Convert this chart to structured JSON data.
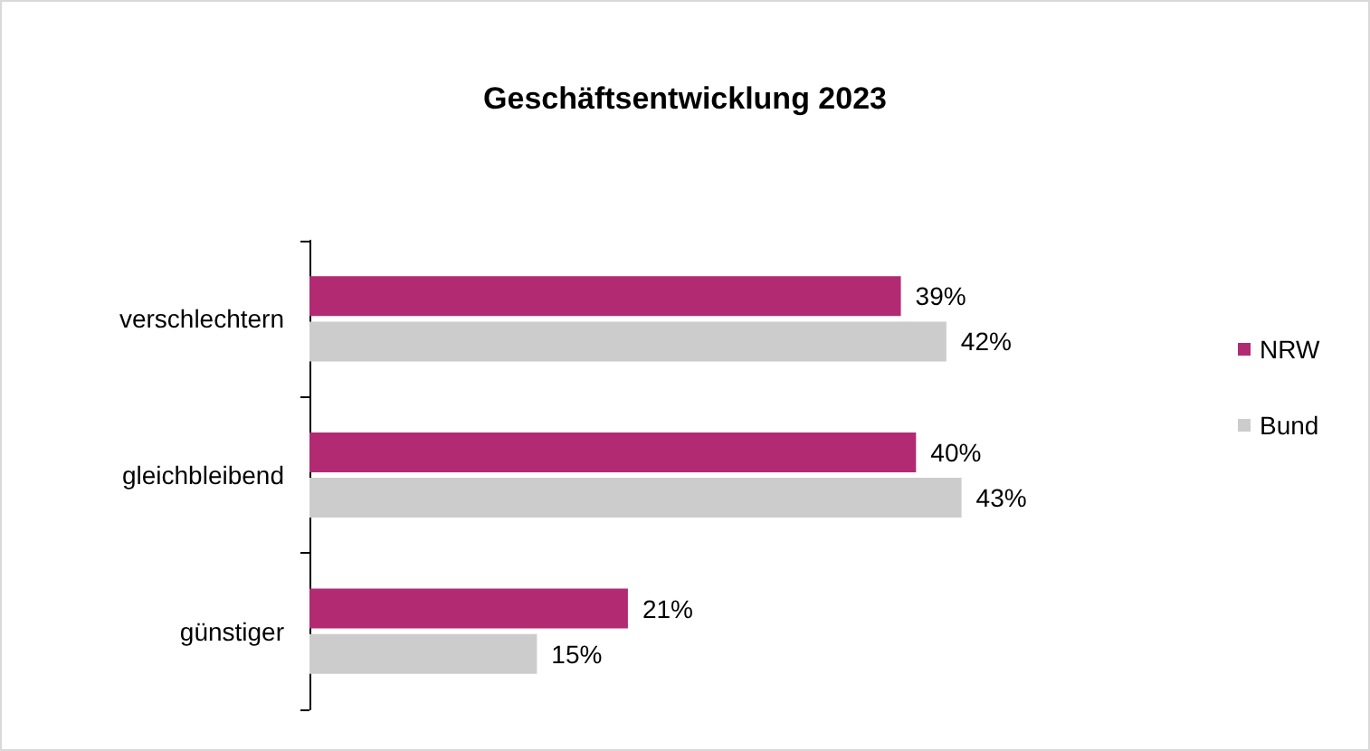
{
  "chart_data": {
    "type": "bar",
    "orientation": "horizontal",
    "title": "Geschäftsentwicklung 2023",
    "categories": [
      "verschlechtern",
      "gleichbleibend",
      "günstiger"
    ],
    "series": [
      {
        "name": "NRW",
        "color": "#b12a72",
        "values": [
          39,
          40,
          21
        ],
        "value_labels": [
          "39%",
          "40%",
          "21%"
        ]
      },
      {
        "name": "Bund",
        "color": "#cccccc",
        "values": [
          42,
          43,
          15
        ],
        "value_labels": [
          "42%",
          "43%",
          "15%"
        ]
      }
    ],
    "legend": "right"
  }
}
